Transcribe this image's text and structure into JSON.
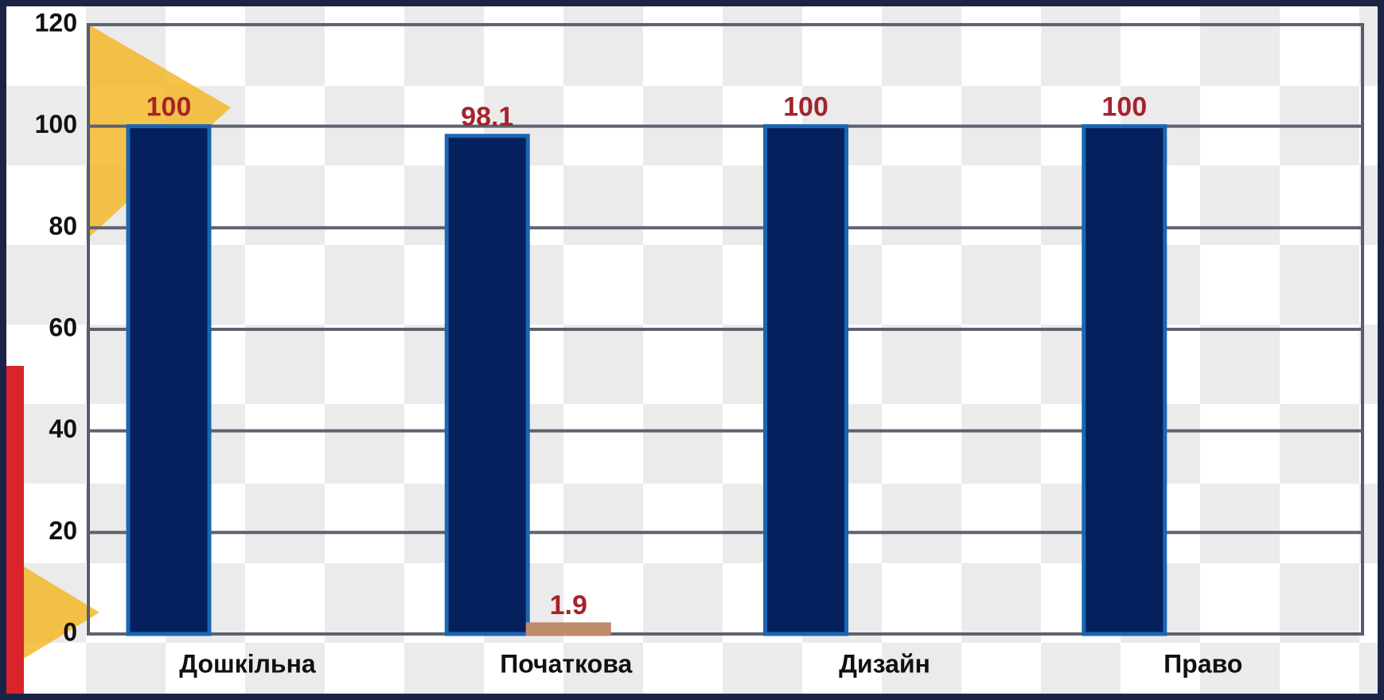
{
  "chart_data": {
    "type": "bar",
    "categories": [
      "Дошкільна",
      "Початкова",
      "Дизайн",
      "Право"
    ],
    "series": [
      {
        "color": "#06205e",
        "values": [
          100,
          98.1,
          100,
          100
        ]
      },
      {
        "color": "#c08a6c",
        "values": [
          null,
          1.9,
          null,
          null
        ]
      }
    ],
    "ylim": [
      0,
      120
    ],
    "yticks": [
      0,
      20,
      40,
      60,
      80,
      100,
      120
    ],
    "grid": true
  }
}
